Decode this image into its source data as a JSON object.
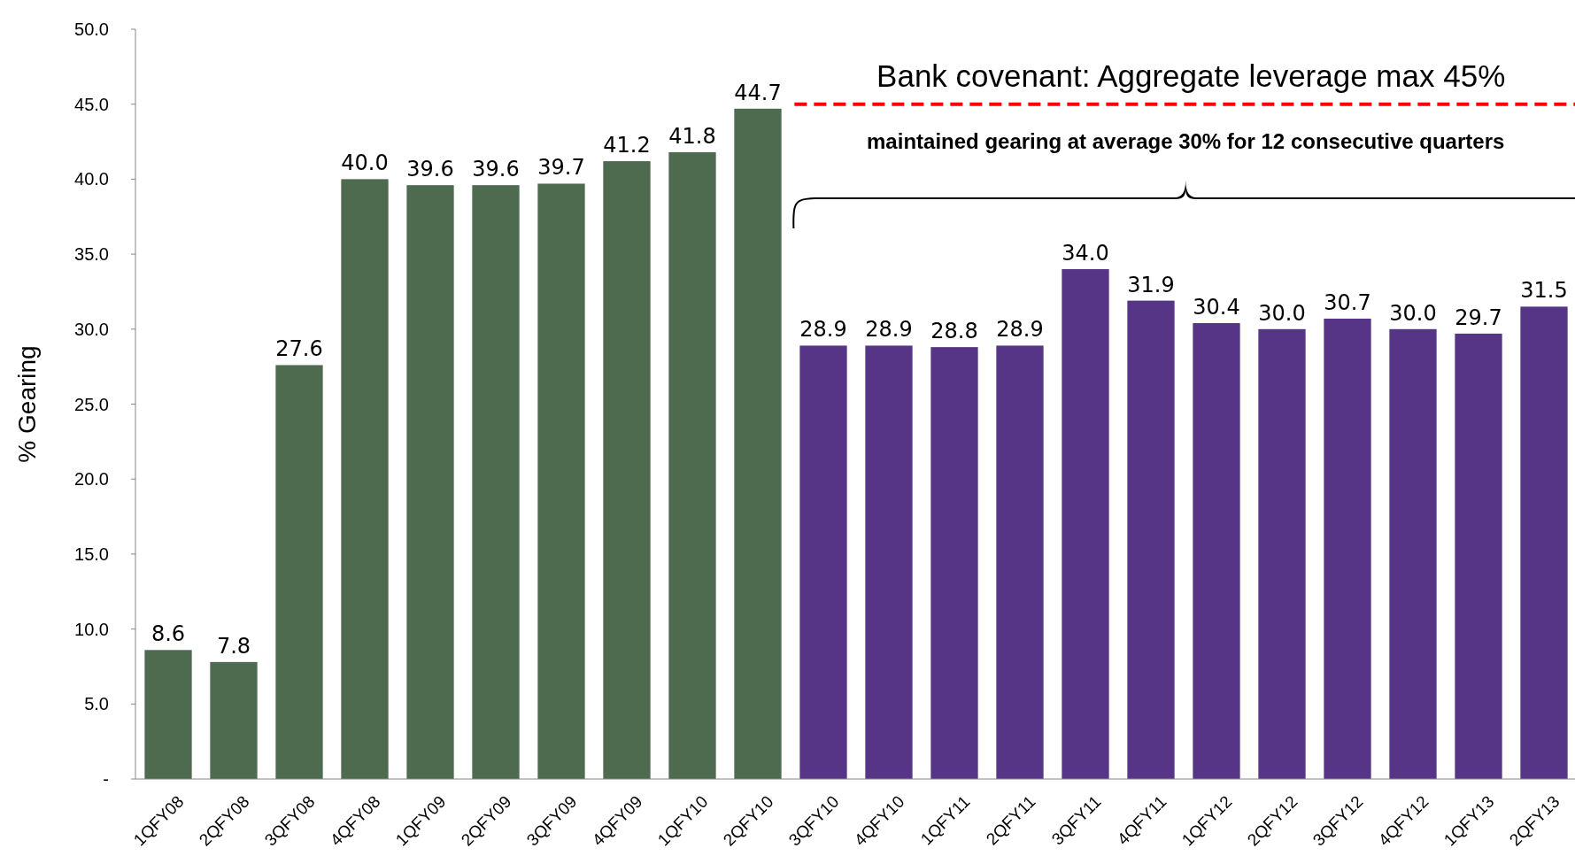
{
  "chart_data": {
    "type": "bar",
    "ylabel": "% Gearing",
    "categories": [
      "1QFY08",
      "2QFY08",
      "3QFY08",
      "4QFY08",
      "1QFY09",
      "2QFY09",
      "3QFY09",
      "4QFY09",
      "1QFY10",
      "2QFY10",
      "3QFY10",
      "4QFY10",
      "1QFY11",
      "2QFY11",
      "3QFY11",
      "4QFY11",
      "1QFY12",
      "2QFY12",
      "3QFY12",
      "4QFY12",
      "1QFY13",
      "2QFY13"
    ],
    "values": [
      8.6,
      7.8,
      27.6,
      40.0,
      39.6,
      39.6,
      39.7,
      41.2,
      41.8,
      44.7,
      28.9,
      28.9,
      28.8,
      28.9,
      34.0,
      31.9,
      30.4,
      30.0,
      30.7,
      30.0,
      29.7,
      31.5
    ],
    "value_labels": [
      "8.6",
      "7.8",
      "27.6",
      "40.0",
      "39.6",
      "39.6",
      "39.7",
      "41.2",
      "41.8",
      "44.7",
      "28.9",
      "28.9",
      "28.8",
      "28.9",
      "34.0",
      "31.9",
      "30.4",
      "30.0",
      "30.7",
      "30.0",
      "29.7",
      "31.5"
    ],
    "colors": [
      "#4e6a4f",
      "#4e6a4f",
      "#4e6a4f",
      "#4e6a4f",
      "#4e6a4f",
      "#4e6a4f",
      "#4e6a4f",
      "#4e6a4f",
      "#4e6a4f",
      "#4e6a4f",
      "#573586",
      "#573586",
      "#573586",
      "#573586",
      "#573586",
      "#573586",
      "#573586",
      "#573586",
      "#573586",
      "#573586",
      "#573586",
      "#573586"
    ],
    "ylim": [
      0,
      50
    ],
    "yticks": [
      {
        "value": 0,
        "label": "-"
      },
      {
        "value": 5,
        "label": "5.0"
      },
      {
        "value": 10,
        "label": "10.0"
      },
      {
        "value": 15,
        "label": "15.0"
      },
      {
        "value": 20,
        "label": "20.0"
      },
      {
        "value": 25,
        "label": "25.0"
      },
      {
        "value": 30,
        "label": "30.0"
      },
      {
        "value": 35,
        "label": "35.0"
      },
      {
        "value": 40,
        "label": "40.0"
      },
      {
        "value": 45,
        "label": "45.0"
      },
      {
        "value": 50,
        "label": "50.0"
      }
    ],
    "grid": false,
    "ref_lines": [
      {
        "axis": "y",
        "value": 45,
        "label": "Bank covenant: Aggregate leverage max 45%",
        "color": "#ff0000",
        "line_style": "dashed"
      }
    ],
    "annotations": [
      "maintained gearing at average 30% for 12 consecutive quarters"
    ]
  }
}
